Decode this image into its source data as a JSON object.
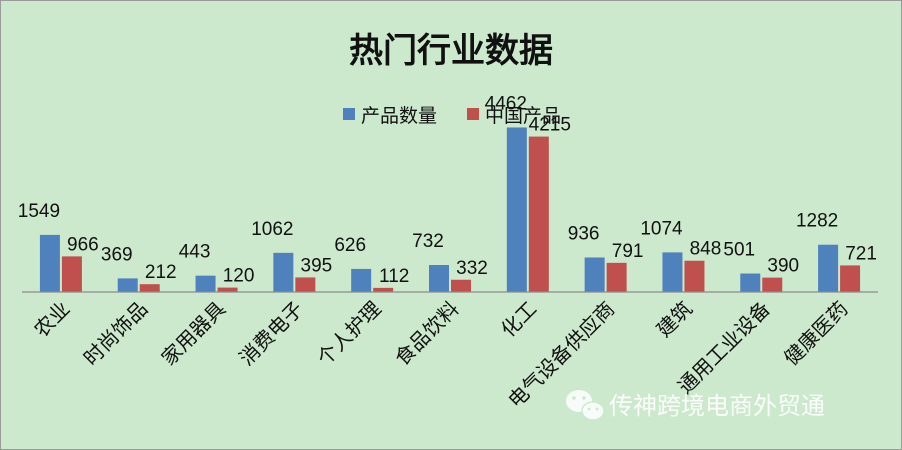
{
  "chart_data": {
    "type": "bar",
    "title": "热门行业数据",
    "categories": [
      "农业",
      "时尚饰品",
      "家用器具",
      "消费电子",
      "个人护理",
      "食品饮料",
      "化工",
      "电气设备供应商",
      "建筑",
      "通用工业设备",
      "健康医药"
    ],
    "series": [
      {
        "name": "产品数量",
        "color": "#4f81bd",
        "values": [
          1549,
          369,
          443,
          1062,
          626,
          732,
          4462,
          936,
          1074,
          501,
          1282
        ]
      },
      {
        "name": "中国产品",
        "color": "#c0504d",
        "values": [
          966,
          212,
          120,
          395,
          112,
          332,
          4215,
          791,
          848,
          390,
          721
        ]
      }
    ],
    "ylim": [
      0,
      4800
    ],
    "grid": false,
    "legend_position": "top-center",
    "data_labels": true
  },
  "watermark": {
    "text": "传神跨境电商外贸通",
    "icon": "wechat-icon"
  }
}
